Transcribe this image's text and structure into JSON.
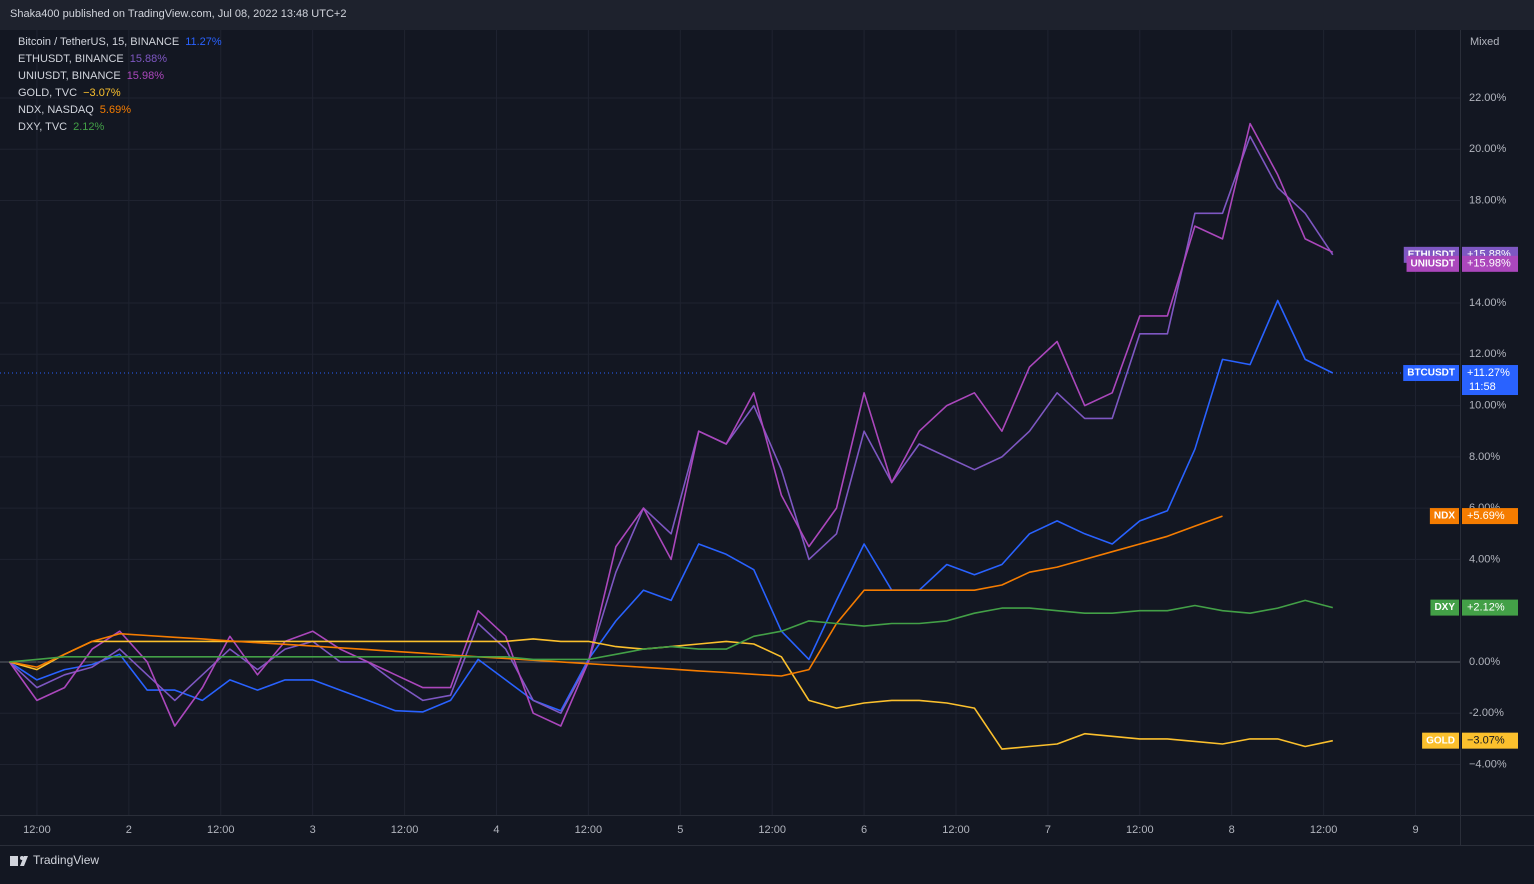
{
  "header": {
    "text": "Shaka400 published on TradingView.com, Jul 08, 2022 13:48 UTC+2"
  },
  "footer": {
    "brand": "TradingView"
  },
  "chart_data": {
    "type": "line",
    "scale_mode": "Mixed",
    "x": [
      1.35,
      1.5,
      1.65,
      1.8,
      1.95,
      2.1,
      2.25,
      2.4,
      2.55,
      2.7,
      2.85,
      3,
      3.15,
      3.3,
      3.45,
      3.6,
      3.75,
      3.9,
      4.05,
      4.2,
      4.35,
      4.5,
      4.65,
      4.8,
      4.95,
      5.1,
      5.25,
      5.4,
      5.55,
      5.7,
      5.85,
      6,
      6.15,
      6.3,
      6.45,
      6.6,
      6.75,
      6.9,
      7.05,
      7.2,
      7.35,
      7.5,
      7.65,
      7.8,
      7.95,
      8.1,
      8.25,
      8.4,
      8.55
    ],
    "xlim": [
      1.299,
      9.242
    ],
    "xticks": [
      {
        "value": 1.5,
        "label": "12:00"
      },
      2,
      {
        "value": 2.5,
        "label": "12:00"
      },
      3,
      {
        "value": 3.5,
        "label": "12:00"
      },
      4,
      {
        "value": 4.5,
        "label": "12:00"
      },
      5,
      {
        "value": 5.5,
        "label": "12:00"
      },
      6,
      {
        "value": 6.5,
        "label": "12:00"
      },
      7,
      {
        "value": 7.5,
        "label": "12:00"
      },
      8,
      {
        "value": 8.5,
        "label": "12:00"
      },
      9
    ],
    "ylim": [
      -5.97,
      24.65
    ],
    "yticks": [
      {
        "value": 22,
        "label": "22.00%"
      },
      {
        "value": 20,
        "label": "20.00%"
      },
      {
        "value": 18,
        "label": "18.00%"
      },
      {
        "value": 14,
        "label": "14.00%"
      },
      {
        "value": 12,
        "label": "12.00%"
      },
      {
        "value": 10,
        "label": "10.00%"
      },
      {
        "value": 8,
        "label": "8.00%"
      },
      {
        "value": 6,
        "label": "6.00%"
      },
      {
        "value": 4,
        "label": "4.00%"
      },
      {
        "value": 0,
        "label": "0.00%"
      },
      {
        "value": -2,
        "label": "-2.00%"
      },
      {
        "value": -4,
        "label": "−4.00%"
      }
    ],
    "grid": true,
    "series": [
      {
        "name": "Bitcoin / TetherUS, 15, BINANCE",
        "legend_label": "11.27%",
        "tag": "BTCUSDT",
        "last_label": "+11.27%",
        "countdown": "11:58",
        "color": "#2962ff",
        "values": [
          0,
          -0.7,
          -0.3,
          -0.1,
          0.3,
          -1.1,
          -1.1,
          -1.5,
          -0.7,
          -1.1,
          -0.7,
          -0.7,
          -1.1,
          -1.5,
          -1.9,
          -1.95,
          -1.5,
          0.1,
          -0.7,
          -1.5,
          -1.9,
          0.1,
          1.6,
          2.8,
          2.4,
          4.6,
          4.2,
          3.6,
          1.2,
          0.1,
          2.4,
          4.6,
          2.8,
          2.8,
          3.8,
          3.4,
          3.8,
          5.0,
          5.5,
          5.0,
          4.6,
          5.5,
          5.9,
          8.3,
          11.8,
          11.6,
          14.1,
          11.8,
          11.27
        ]
      },
      {
        "name": "ETHUSDT, BINANCE",
        "legend_label": "15.88%",
        "tag": "ETHUSDT",
        "last_label": "+15.88%",
        "color": "#7e57c2",
        "values": [
          0,
          -1.0,
          -0.5,
          -0.2,
          0.5,
          -0.5,
          -1.5,
          -0.5,
          0.5,
          -0.3,
          0.5,
          0.8,
          0,
          0,
          -0.8,
          -1.5,
          -1.3,
          1.5,
          0.5,
          -1.5,
          -2.0,
          0,
          3.5,
          6.0,
          5.0,
          9.0,
          8.5,
          10.0,
          7.5,
          4.0,
          5.0,
          9.0,
          7.0,
          8.5,
          8.0,
          7.5,
          8.0,
          9.0,
          10.5,
          9.5,
          9.5,
          12.8,
          12.8,
          17.5,
          17.5,
          20.5,
          18.5,
          17.5,
          15.88
        ]
      },
      {
        "name": "UNIUSDT, BINANCE",
        "legend_label": "15.98%",
        "tag": "UNIUSDT",
        "last_label": "+15.98%",
        "color": "#ab47bc",
        "values": [
          0,
          -1.5,
          -1.0,
          0.5,
          1.2,
          0,
          -2.5,
          -1.0,
          1.0,
          -0.5,
          0.8,
          1.2,
          0.5,
          0,
          -0.5,
          -1.0,
          -1.0,
          2.0,
          1.0,
          -2.0,
          -2.5,
          0,
          4.5,
          6.0,
          4.0,
          9.0,
          8.5,
          10.5,
          6.5,
          4.5,
          6.0,
          10.5,
          7.0,
          9.0,
          10.0,
          10.5,
          9.0,
          11.5,
          12.5,
          10.0,
          10.5,
          13.5,
          13.5,
          17.0,
          16.5,
          21.0,
          19.0,
          16.5,
          15.98
        ]
      },
      {
        "name": "GOLD, TVC",
        "legend_label": "−3.07%",
        "tag": "GOLD",
        "last_label": "−3.07%",
        "color": "#fbc02d",
        "values": [
          0,
          -0.3,
          0.3,
          0.8,
          0.8,
          0.8,
          0.8,
          0.8,
          0.8,
          0.8,
          0.8,
          0.8,
          0.8,
          0.8,
          0.8,
          0.8,
          0.8,
          0.8,
          0.8,
          0.9,
          0.8,
          0.8,
          0.6,
          0.5,
          0.6,
          0.7,
          0.8,
          0.7,
          0.2,
          -1.5,
          -1.8,
          -1.6,
          -1.5,
          -1.5,
          -1.6,
          -1.8,
          -3.4,
          -3.3,
          -3.2,
          -2.8,
          -2.9,
          -3.0,
          -3.0,
          -3.1,
          -3.2,
          -3.0,
          -3.0,
          -3.3,
          -3.07
        ]
      },
      {
        "name": "NDX, NASDAQ",
        "legend_label": "5.69%",
        "tag": "NDX",
        "last_label": "+5.69%",
        "color": "#f57c00",
        "values": [
          0,
          -0.2,
          0.3,
          0.8,
          1.1,
          1.03,
          0.96,
          0.9,
          0.82,
          0.75,
          0.69,
          0.62,
          0.55,
          0.48,
          0.41,
          0.34,
          0.27,
          0.2,
          0.14,
          0.07,
          0.0,
          -0.07,
          -0.14,
          -0.21,
          -0.28,
          -0.35,
          -0.41,
          -0.48,
          -0.55,
          -0.3,
          1.5,
          2.8,
          2.8,
          2.8,
          2.8,
          2.8,
          3.0,
          3.5,
          3.7,
          4.0,
          4.3,
          4.6,
          4.9,
          5.3,
          5.69,
          null,
          null,
          null,
          null
        ]
      },
      {
        "name": "DXY, TVC",
        "legend_label": "2.12%",
        "tag": "DXY",
        "last_label": "+2.12%",
        "color": "#43a047",
        "values": [
          0,
          0.1,
          0.2,
          0.2,
          0.2,
          0.2,
          0.2,
          0.2,
          0.2,
          0.2,
          0.2,
          0.2,
          0.2,
          0.2,
          0.2,
          0.2,
          0.2,
          0.2,
          0.2,
          0.1,
          0.1,
          0.1,
          0.3,
          0.5,
          0.6,
          0.5,
          0.5,
          1.0,
          1.2,
          1.6,
          1.5,
          1.4,
          1.5,
          1.5,
          1.6,
          1.9,
          2.1,
          2.1,
          2.0,
          1.9,
          1.9,
          2.0,
          2.0,
          2.2,
          2.0,
          1.9,
          2.1,
          2.4,
          2.12
        ]
      }
    ]
  }
}
